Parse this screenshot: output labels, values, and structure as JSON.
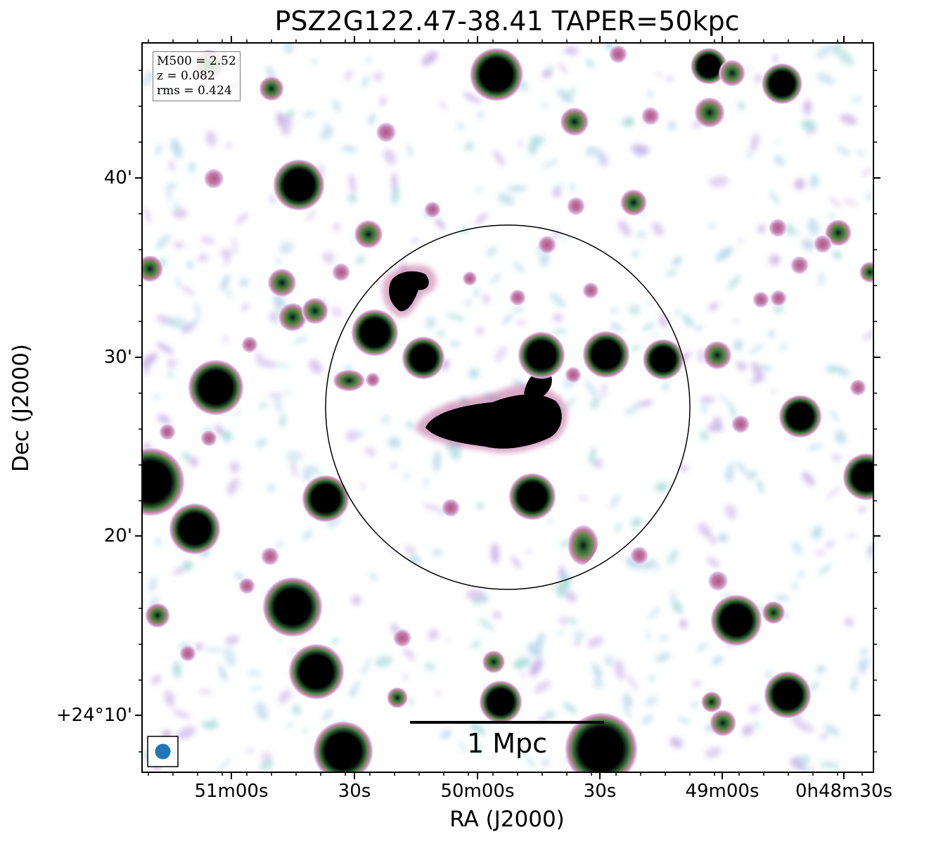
{
  "title": "PSZ2G122.47-38.41 TAPER=50kpc",
  "info": {
    "mass": "M500 = 2.52",
    "redshift": "z = 0.082",
    "rms": "rms = 0.424"
  },
  "axes": {
    "xlabel": "RA (J2000)",
    "ylabel": "Dec (J2000)",
    "xticks": [
      "51m00s",
      "30s",
      "50m00s",
      "30s",
      "49m00s",
      "0h48m30s"
    ],
    "yticks": [
      "40'",
      "30'",
      "20'",
      "+24°10'"
    ]
  },
  "scalebar": {
    "label": "1 Mpc"
  },
  "colors": {
    "contour_faint": "#bcd9ec",
    "contour_teal": "#a8dcd8",
    "contour_lavender": "#c8b4e6",
    "contour_pink": "#c87aa8",
    "contour_green": "#2f6a3a",
    "source_core": "#000000",
    "beam": "#1f77b4"
  }
}
